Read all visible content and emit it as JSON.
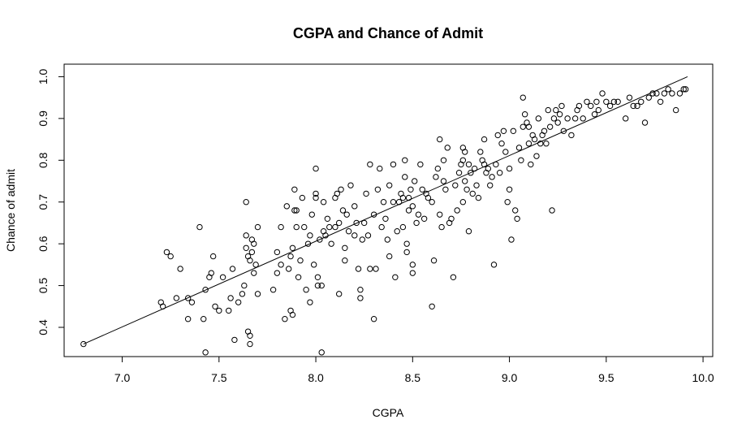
{
  "chart_data": {
    "type": "scatter",
    "title": "CGPA and Chance of Admit",
    "xlabel": "CGPA",
    "ylabel": "Chance of admit",
    "xlim": [
      6.7,
      10.05
    ],
    "ylim": [
      0.33,
      1.03
    ],
    "xticks": [
      7.0,
      7.5,
      8.0,
      8.5,
      9.0,
      9.5,
      10.0
    ],
    "xtick_labels": [
      "7.0",
      "7.5",
      "8.0",
      "8.5",
      "9.0",
      "9.5",
      "10.0"
    ],
    "yticks": [
      0.4,
      0.5,
      0.6,
      0.7,
      0.8,
      0.9,
      1.0
    ],
    "ytick_labels": [
      "0.4",
      "0.5",
      "0.6",
      "0.7",
      "0.8",
      "0.9",
      "1.0"
    ],
    "grid": false,
    "legend": "none",
    "fit_line": {
      "x": [
        6.8,
        9.92
      ],
      "y": [
        0.36,
        1.0
      ]
    },
    "points": [
      [
        6.8,
        0.36
      ],
      [
        7.2,
        0.46
      ],
      [
        7.21,
        0.45
      ],
      [
        7.23,
        0.58
      ],
      [
        7.25,
        0.57
      ],
      [
        7.28,
        0.47
      ],
      [
        7.3,
        0.54
      ],
      [
        7.34,
        0.42
      ],
      [
        7.34,
        0.47
      ],
      [
        7.36,
        0.46
      ],
      [
        7.4,
        0.64
      ],
      [
        7.42,
        0.42
      ],
      [
        7.43,
        0.34
      ],
      [
        7.43,
        0.49
      ],
      [
        7.45,
        0.52
      ],
      [
        7.46,
        0.53
      ],
      [
        7.47,
        0.57
      ],
      [
        7.48,
        0.45
      ],
      [
        7.5,
        0.44
      ],
      [
        7.52,
        0.52
      ],
      [
        7.55,
        0.44
      ],
      [
        7.56,
        0.47
      ],
      [
        7.57,
        0.54
      ],
      [
        7.58,
        0.37
      ],
      [
        7.6,
        0.46
      ],
      [
        7.62,
        0.48
      ],
      [
        7.63,
        0.5
      ],
      [
        7.64,
        0.7
      ],
      [
        7.64,
        0.59
      ],
      [
        7.64,
        0.62
      ],
      [
        7.65,
        0.39
      ],
      [
        7.65,
        0.57
      ],
      [
        7.66,
        0.38
      ],
      [
        7.66,
        0.36
      ],
      [
        7.66,
        0.56
      ],
      [
        7.67,
        0.58
      ],
      [
        7.67,
        0.61
      ],
      [
        7.68,
        0.6
      ],
      [
        7.68,
        0.53
      ],
      [
        7.69,
        0.55
      ],
      [
        7.7,
        0.64
      ],
      [
        7.7,
        0.48
      ],
      [
        7.78,
        0.49
      ],
      [
        7.8,
        0.53
      ],
      [
        7.8,
        0.58
      ],
      [
        7.82,
        0.55
      ],
      [
        7.82,
        0.64
      ],
      [
        7.84,
        0.42
      ],
      [
        7.85,
        0.69
      ],
      [
        7.86,
        0.54
      ],
      [
        7.87,
        0.57
      ],
      [
        7.87,
        0.44
      ],
      [
        7.88,
        0.43
      ],
      [
        7.88,
        0.59
      ],
      [
        7.89,
        0.68
      ],
      [
        7.89,
        0.73
      ],
      [
        7.9,
        0.64
      ],
      [
        7.9,
        0.68
      ],
      [
        7.91,
        0.52
      ],
      [
        7.92,
        0.56
      ],
      [
        7.93,
        0.71
      ],
      [
        7.94,
        0.64
      ],
      [
        7.95,
        0.49
      ],
      [
        7.96,
        0.6
      ],
      [
        7.97,
        0.62
      ],
      [
        7.97,
        0.46
      ],
      [
        7.98,
        0.67
      ],
      [
        7.99,
        0.55
      ],
      [
        8.0,
        0.78
      ],
      [
        8.0,
        0.71
      ],
      [
        8.0,
        0.72
      ],
      [
        8.01,
        0.52
      ],
      [
        8.01,
        0.5
      ],
      [
        8.02,
        0.61
      ],
      [
        8.03,
        0.5
      ],
      [
        8.03,
        0.34
      ],
      [
        8.04,
        0.7
      ],
      [
        8.04,
        0.63
      ],
      [
        8.05,
        0.62
      ],
      [
        8.06,
        0.66
      ],
      [
        8.07,
        0.64
      ],
      [
        8.08,
        0.6
      ],
      [
        8.1,
        0.64
      ],
      [
        8.1,
        0.71
      ],
      [
        8.11,
        0.72
      ],
      [
        8.12,
        0.65
      ],
      [
        8.12,
        0.48
      ],
      [
        8.13,
        0.73
      ],
      [
        8.14,
        0.68
      ],
      [
        8.15,
        0.59
      ],
      [
        8.15,
        0.56
      ],
      [
        8.16,
        0.67
      ],
      [
        8.17,
        0.63
      ],
      [
        8.18,
        0.74
      ],
      [
        8.2,
        0.62
      ],
      [
        8.2,
        0.69
      ],
      [
        8.21,
        0.65
      ],
      [
        8.22,
        0.54
      ],
      [
        8.23,
        0.49
      ],
      [
        8.23,
        0.47
      ],
      [
        8.24,
        0.61
      ],
      [
        8.25,
        0.65
      ],
      [
        8.26,
        0.72
      ],
      [
        8.27,
        0.62
      ],
      [
        8.28,
        0.79
      ],
      [
        8.28,
        0.54
      ],
      [
        8.3,
        0.67
      ],
      [
        8.3,
        0.42
      ],
      [
        8.31,
        0.54
      ],
      [
        8.32,
        0.73
      ],
      [
        8.33,
        0.78
      ],
      [
        8.34,
        0.64
      ],
      [
        8.35,
        0.7
      ],
      [
        8.36,
        0.66
      ],
      [
        8.37,
        0.61
      ],
      [
        8.38,
        0.57
      ],
      [
        8.38,
        0.74
      ],
      [
        8.4,
        0.7
      ],
      [
        8.4,
        0.79
      ],
      [
        8.41,
        0.52
      ],
      [
        8.42,
        0.63
      ],
      [
        8.43,
        0.7
      ],
      [
        8.44,
        0.72
      ],
      [
        8.45,
        0.71
      ],
      [
        8.45,
        0.64
      ],
      [
        8.46,
        0.76
      ],
      [
        8.46,
        0.8
      ],
      [
        8.47,
        0.6
      ],
      [
        8.47,
        0.58
      ],
      [
        8.48,
        0.68
      ],
      [
        8.48,
        0.71
      ],
      [
        8.49,
        0.73
      ],
      [
        8.5,
        0.69
      ],
      [
        8.5,
        0.55
      ],
      [
        8.5,
        0.53
      ],
      [
        8.51,
        0.75
      ],
      [
        8.52,
        0.65
      ],
      [
        8.53,
        0.67
      ],
      [
        8.54,
        0.79
      ],
      [
        8.55,
        0.73
      ],
      [
        8.56,
        0.66
      ],
      [
        8.57,
        0.72
      ],
      [
        8.58,
        0.71
      ],
      [
        8.6,
        0.7
      ],
      [
        8.6,
        0.45
      ],
      [
        8.61,
        0.56
      ],
      [
        8.62,
        0.76
      ],
      [
        8.63,
        0.78
      ],
      [
        8.64,
        0.67
      ],
      [
        8.64,
        0.85
      ],
      [
        8.65,
        0.64
      ],
      [
        8.66,
        0.8
      ],
      [
        8.66,
        0.75
      ],
      [
        8.67,
        0.73
      ],
      [
        8.68,
        0.83
      ],
      [
        8.69,
        0.65
      ],
      [
        8.7,
        0.66
      ],
      [
        8.71,
        0.52
      ],
      [
        8.72,
        0.74
      ],
      [
        8.73,
        0.68
      ],
      [
        8.74,
        0.77
      ],
      [
        8.75,
        0.79
      ],
      [
        8.76,
        0.8
      ],
      [
        8.76,
        0.83
      ],
      [
        8.76,
        0.7
      ],
      [
        8.77,
        0.75
      ],
      [
        8.77,
        0.82
      ],
      [
        8.78,
        0.73
      ],
      [
        8.79,
        0.63
      ],
      [
        8.79,
        0.79
      ],
      [
        8.8,
        0.77
      ],
      [
        8.81,
        0.72
      ],
      [
        8.82,
        0.78
      ],
      [
        8.83,
        0.74
      ],
      [
        8.84,
        0.71
      ],
      [
        8.85,
        0.82
      ],
      [
        8.86,
        0.8
      ],
      [
        8.87,
        0.79
      ],
      [
        8.87,
        0.85
      ],
      [
        8.88,
        0.77
      ],
      [
        8.89,
        0.78
      ],
      [
        8.9,
        0.74
      ],
      [
        8.91,
        0.76
      ],
      [
        8.92,
        0.55
      ],
      [
        8.93,
        0.79
      ],
      [
        8.94,
        0.86
      ],
      [
        8.95,
        0.77
      ],
      [
        8.96,
        0.84
      ],
      [
        8.97,
        0.87
      ],
      [
        8.98,
        0.82
      ],
      [
        8.99,
        0.7
      ],
      [
        9.0,
        0.73
      ],
      [
        9.0,
        0.78
      ],
      [
        9.01,
        0.61
      ],
      [
        9.02,
        0.87
      ],
      [
        9.03,
        0.68
      ],
      [
        9.04,
        0.66
      ],
      [
        9.05,
        0.83
      ],
      [
        9.06,
        0.8
      ],
      [
        9.07,
        0.95
      ],
      [
        9.07,
        0.88
      ],
      [
        9.08,
        0.91
      ],
      [
        9.09,
        0.89
      ],
      [
        9.1,
        0.84
      ],
      [
        9.1,
        0.88
      ],
      [
        9.11,
        0.79
      ],
      [
        9.12,
        0.86
      ],
      [
        9.13,
        0.85
      ],
      [
        9.14,
        0.81
      ],
      [
        9.15,
        0.9
      ],
      [
        9.16,
        0.84
      ],
      [
        9.17,
        0.86
      ],
      [
        9.18,
        0.87
      ],
      [
        9.19,
        0.84
      ],
      [
        9.2,
        0.92
      ],
      [
        9.21,
        0.88
      ],
      [
        9.22,
        0.68
      ],
      [
        9.23,
        0.9
      ],
      [
        9.24,
        0.92
      ],
      [
        9.25,
        0.89
      ],
      [
        9.26,
        0.91
      ],
      [
        9.27,
        0.93
      ],
      [
        9.28,
        0.87
      ],
      [
        9.3,
        0.9
      ],
      [
        9.32,
        0.86
      ],
      [
        9.34,
        0.9
      ],
      [
        9.35,
        0.92
      ],
      [
        9.36,
        0.93
      ],
      [
        9.38,
        0.9
      ],
      [
        9.4,
        0.94
      ],
      [
        9.42,
        0.93
      ],
      [
        9.44,
        0.91
      ],
      [
        9.45,
        0.94
      ],
      [
        9.46,
        0.92
      ],
      [
        9.48,
        0.96
      ],
      [
        9.5,
        0.94
      ],
      [
        9.52,
        0.93
      ],
      [
        9.54,
        0.94
      ],
      [
        9.56,
        0.94
      ],
      [
        9.6,
        0.9
      ],
      [
        9.62,
        0.95
      ],
      [
        9.64,
        0.93
      ],
      [
        9.66,
        0.93
      ],
      [
        9.68,
        0.94
      ],
      [
        9.7,
        0.89
      ],
      [
        9.72,
        0.95
      ],
      [
        9.74,
        0.96
      ],
      [
        9.76,
        0.96
      ],
      [
        9.78,
        0.94
      ],
      [
        9.8,
        0.96
      ],
      [
        9.82,
        0.97
      ],
      [
        9.84,
        0.96
      ],
      [
        9.86,
        0.92
      ],
      [
        9.88,
        0.96
      ],
      [
        9.9,
        0.97
      ],
      [
        9.91,
        0.97
      ]
    ]
  }
}
